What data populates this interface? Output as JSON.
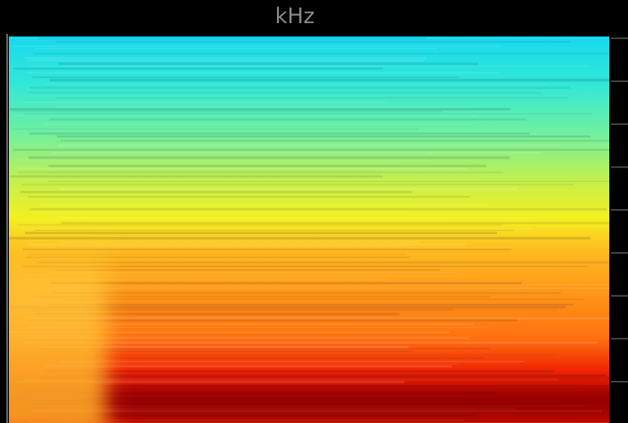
{
  "axis_label": "kHz"
}
